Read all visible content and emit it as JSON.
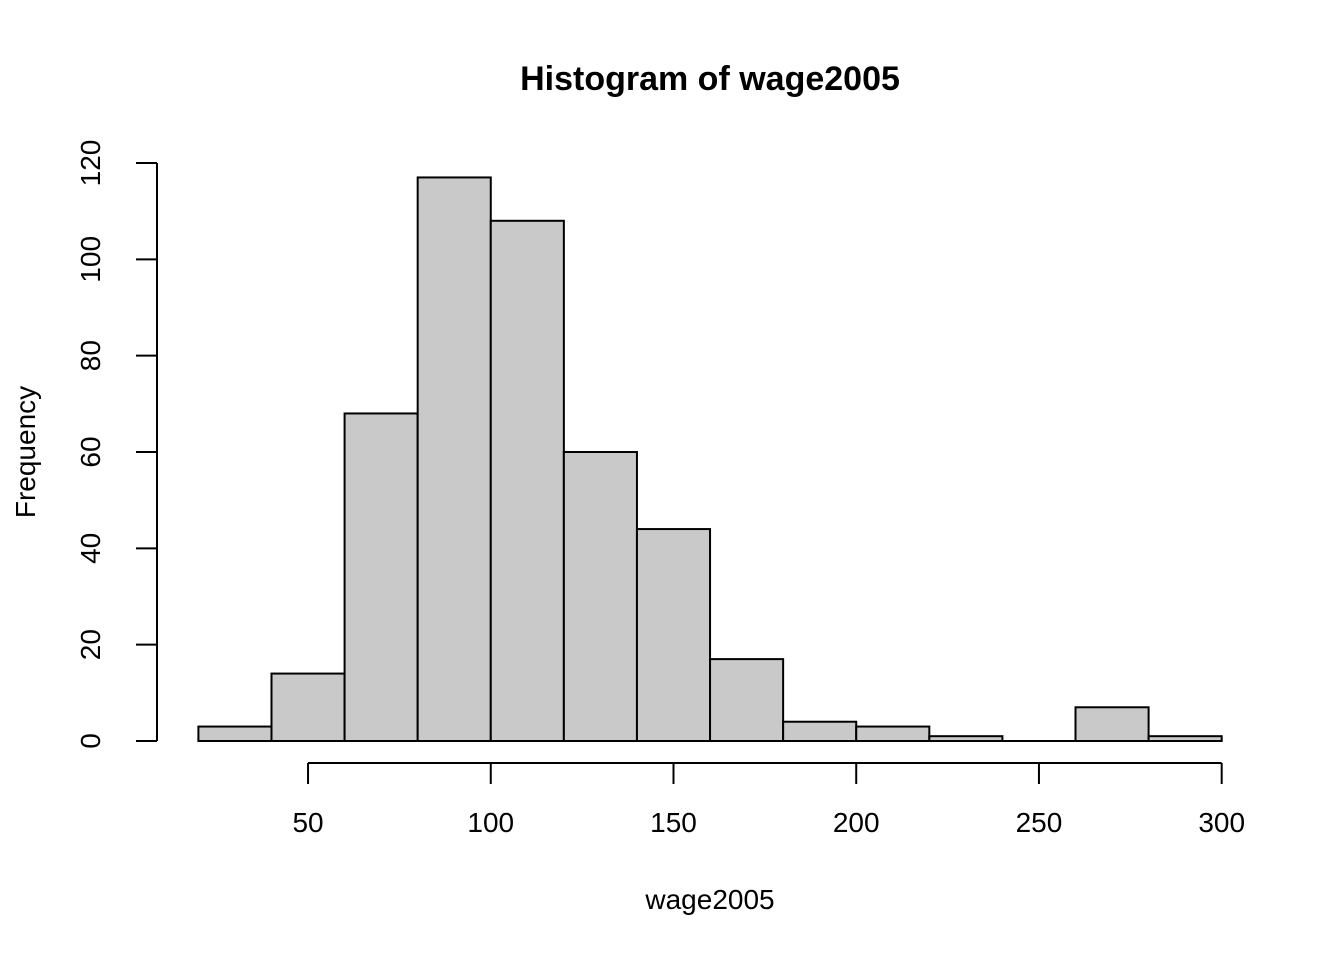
{
  "chart_data": {
    "type": "bar",
    "subtype": "histogram",
    "title": "Histogram of wage2005",
    "xlabel": "wage2005",
    "ylabel": "Frequency",
    "breaks": [
      20,
      40,
      60,
      80,
      100,
      120,
      140,
      160,
      180,
      200,
      220,
      240,
      260,
      280,
      300
    ],
    "counts": [
      3,
      14,
      68,
      117,
      108,
      60,
      44,
      17,
      4,
      3,
      1,
      0,
      7,
      1
    ],
    "xticks": [
      50,
      100,
      150,
      200,
      250,
      300
    ],
    "yticks": [
      0,
      20,
      40,
      60,
      80,
      100,
      120
    ],
    "xlim": [
      20,
      300
    ],
    "ylim": [
      0,
      120
    ],
    "bar_fill_color": "#C9C9C9",
    "bar_stroke_color": "#000000",
    "axis_color": "#000000",
    "background_color": "#FFFFFF",
    "grid": false,
    "legend": false
  }
}
